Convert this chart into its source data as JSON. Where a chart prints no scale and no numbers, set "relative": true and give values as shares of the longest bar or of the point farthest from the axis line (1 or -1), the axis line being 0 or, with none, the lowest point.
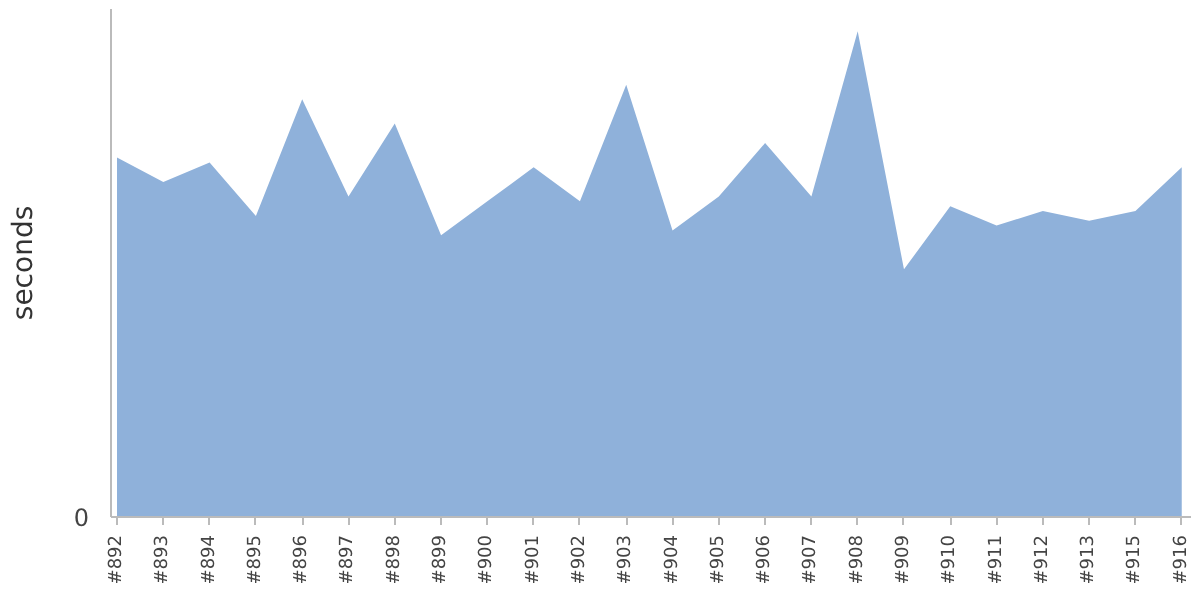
{
  "chart_data": {
    "type": "area",
    "relative": true,
    "ylabel": "seconds",
    "color": "#8fb1da",
    "categories": [
      "#892",
      "#893",
      "#894",
      "#895",
      "#896",
      "#897",
      "#898",
      "#899",
      "#900",
      "#901",
      "#902",
      "#903",
      "#904",
      "#905",
      "#906",
      "#907",
      "#908",
      "#909",
      "#910",
      "#911",
      "#912",
      "#913",
      "#915",
      "#916"
    ],
    "values": [
      0.74,
      0.69,
      0.73,
      0.62,
      0.86,
      0.66,
      0.81,
      0.58,
      0.65,
      0.72,
      0.65,
      0.89,
      0.59,
      0.66,
      0.77,
      0.66,
      1,
      0.51,
      0.64,
      0.6,
      0.63,
      0.61,
      0.63,
      0.72
    ],
    "annotations": [
      "0"
    ],
    "grid": false
  }
}
